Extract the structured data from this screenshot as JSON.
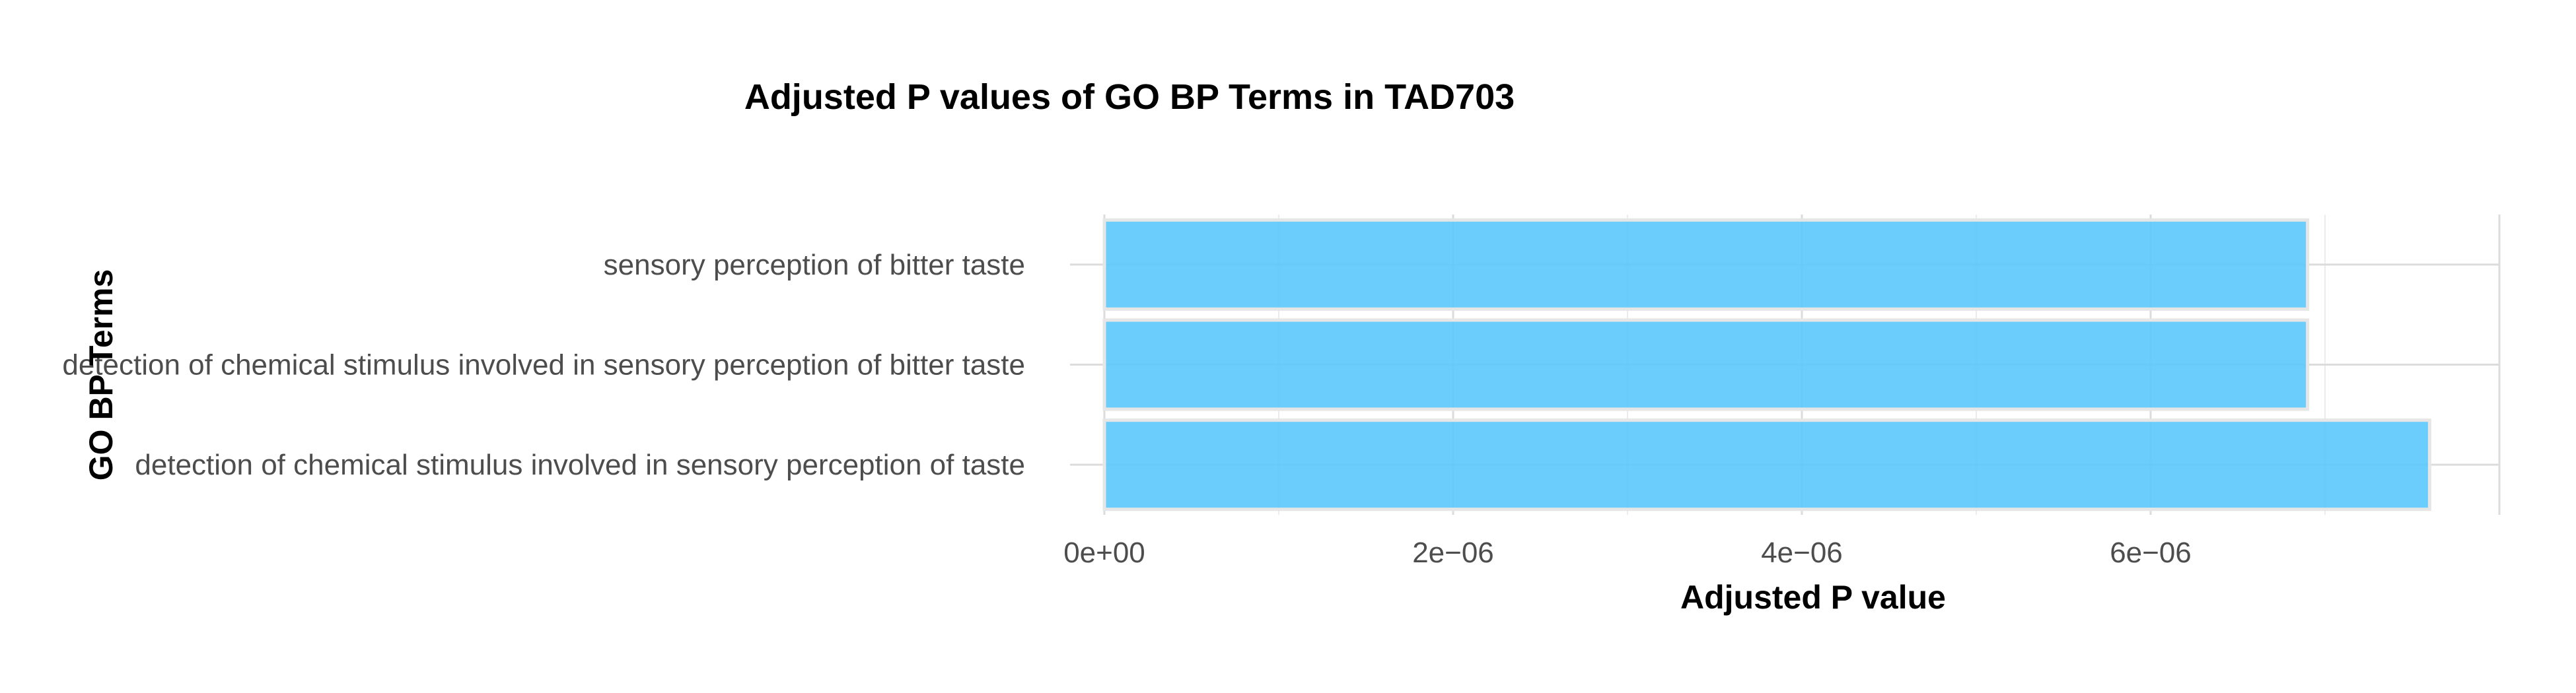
{
  "chart_data": {
    "type": "bar",
    "orientation": "horizontal",
    "title": "Adjusted P values of GO BP Terms in TAD703",
    "xlabel": "Adjusted P value",
    "ylabel": "GO BP Terms",
    "categories": [
      "sensory perception of bitter taste",
      "detection of chemical stimulus involved in sensory perception of bitter taste",
      "detection of chemical stimulus involved in sensory perception of taste"
    ],
    "values": [
      6.9e-06,
      6.9e-06,
      7.6e-06
    ],
    "xlim": [
      0,
      8e-06
    ],
    "x_ticks": [
      0,
      2e-06,
      4e-06,
      6e-06
    ],
    "x_tick_labels": [
      "0e+00",
      "2e−06",
      "4e−06",
      "6e−06"
    ],
    "bar_color": "#5bc8fb",
    "grid": true,
    "legend": "none"
  }
}
